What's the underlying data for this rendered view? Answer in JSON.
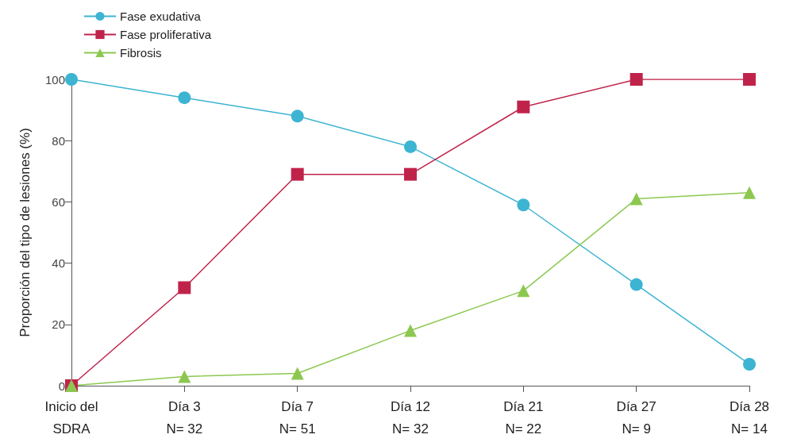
{
  "chart_data": {
    "type": "line",
    "ylabel": "Proporción del tipo de lesiones (%)",
    "categories": [
      "Inicio del\nSDRA",
      "Día 3\nN= 32",
      "Día 7\nN= 51",
      "Día 12\nN= 32",
      "Día 21\nN= 22",
      "Día 27\nN= 9",
      "Día 28\nN= 14"
    ],
    "series": [
      {
        "name": "Fase exudativa",
        "color": "#3cb4d2",
        "marker": "circle",
        "values": [
          100,
          94,
          88,
          78,
          59,
          33,
          7
        ]
      },
      {
        "name": "Fase proliferativa",
        "color": "#c0234a",
        "marker": "square",
        "values": [
          0,
          32,
          69,
          69,
          91,
          100,
          100
        ]
      },
      {
        "name": "Fibrosis",
        "color": "#8cc850",
        "marker": "triangle",
        "values": [
          0,
          3,
          4,
          18,
          31,
          61,
          63
        ]
      }
    ],
    "ylim": [
      0,
      100
    ],
    "yticks": [
      0,
      20,
      40,
      60,
      80,
      100
    ],
    "grid": false,
    "legend": "top left"
  }
}
